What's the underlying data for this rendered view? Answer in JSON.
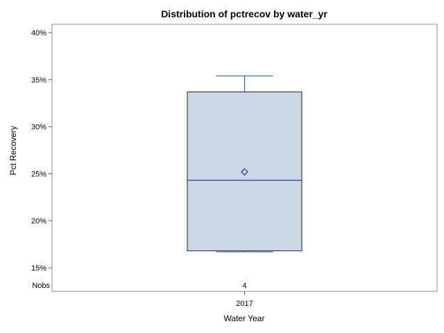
{
  "chart_data": {
    "type": "box",
    "title": "Distribution of pctrecov by water_yr",
    "xlabel": "Water Year",
    "ylabel": "Pct Recovery",
    "y_ticks": [
      15,
      20,
      25,
      30,
      35,
      40
    ],
    "y_tick_labels": [
      "15%",
      "20%",
      "25%",
      "30%",
      "35%",
      "40%"
    ],
    "ylim": [
      14.5,
      40.5
    ],
    "categories": [
      "2017"
    ],
    "boxes": [
      {
        "category": "2017",
        "min": 16.7,
        "q1": 16.8,
        "median": 24.3,
        "mean": 25.2,
        "q3": 33.7,
        "max": 35.4
      }
    ],
    "nobs_label": "Nobs",
    "nobs": [
      "4"
    ],
    "colors": {
      "box_fill": "#cbd6e6",
      "box_line": "#1f3f8f",
      "whisker": "#1f4fa0",
      "frame": "#888888"
    }
  }
}
